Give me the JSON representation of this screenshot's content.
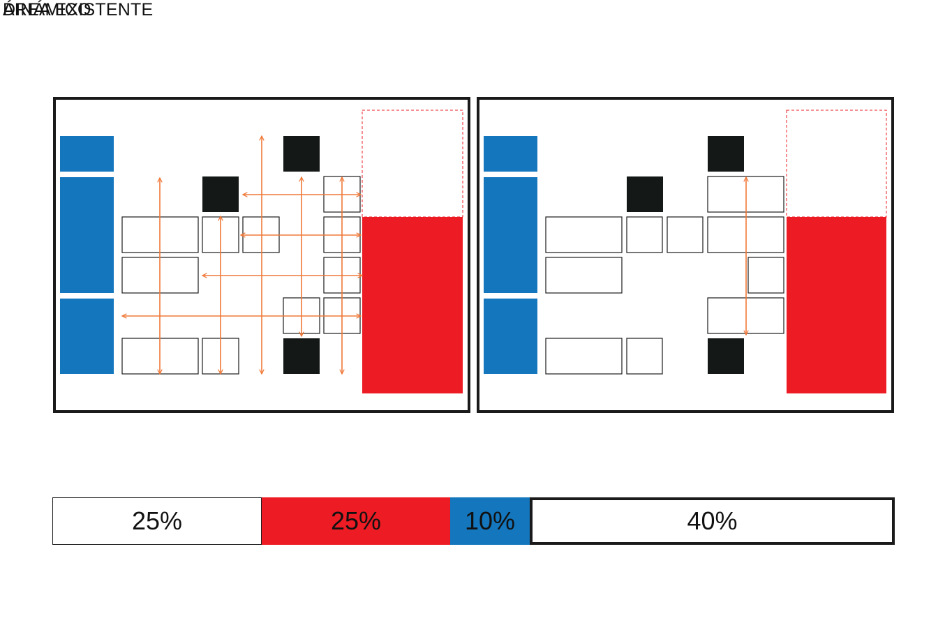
{
  "title": "DINÁMICO",
  "subtitle": "ÁREA EXISTENTE",
  "colors": {
    "blue": "#1476bc",
    "red": "#ed1c24",
    "black": "#141817",
    "arrow": "#f07838",
    "frame": "#1a1a1a",
    "dashed": "#ed1c24"
  },
  "area_bar": [
    {
      "label": "25%",
      "value": 25,
      "fill": "#ffffff",
      "outline": "thin"
    },
    {
      "label": "25%",
      "value": 25,
      "fill": "#ed1c24",
      "outline": "none"
    },
    {
      "label": "10%",
      "value": 10,
      "fill": "#1476bc",
      "outline": "none"
    },
    {
      "label": "40%",
      "value": 40,
      "fill": "#ffffff",
      "outline": "thick"
    }
  ]
}
